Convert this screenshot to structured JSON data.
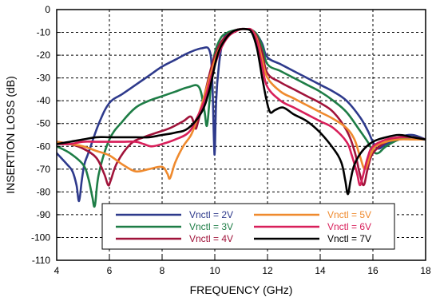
{
  "chart_data": {
    "type": "line",
    "title": "",
    "xlabel": "FREQUENCY (GHz)",
    "ylabel": "INSERTION LOSS (dB)",
    "xlim": [
      4,
      18
    ],
    "ylim": [
      -110,
      0
    ],
    "xticks": [
      4,
      6,
      8,
      10,
      12,
      14,
      16,
      18
    ],
    "yticks": [
      0,
      -10,
      -20,
      -30,
      -40,
      -50,
      -60,
      -70,
      -80,
      -90,
      -100,
      -110
    ],
    "xtick_labels": [
      "4",
      "6",
      "8",
      "10",
      "12",
      "14",
      "16",
      "18"
    ],
    "ytick_labels": [
      "0",
      "-10",
      "-20",
      "-30",
      "-40",
      "-50",
      "-60",
      "-70",
      "-80",
      "-90",
      "-100",
      "-110"
    ],
    "grid": "dashed",
    "legend_placement": "bottom-center",
    "series": [
      {
        "name": "Vnctl = 2V",
        "color": "#2e3a8c",
        "x": [
          4,
          4.4,
          4.6,
          4.75,
          4.85,
          4.95,
          5.05,
          5.2,
          5.6,
          6,
          6.5,
          7,
          7.5,
          8,
          8.5,
          9,
          9.5,
          9.8,
          9.9,
          9.97,
          10,
          10.05,
          10.15,
          10.3,
          10.5,
          10.8,
          11,
          11.2,
          11.4,
          11.6,
          11.8,
          12,
          12.5,
          13,
          13.5,
          14,
          14.5,
          15,
          15.5,
          15.8,
          16,
          16.2,
          16.5,
          17,
          17.5,
          18
        ],
        "y": [
          -63,
          -68,
          -71,
          -77,
          -84,
          -75,
          -68,
          -63,
          -50,
          -41,
          -37,
          -33,
          -29,
          -25,
          -22,
          -19,
          -17,
          -18,
          -30,
          -58,
          -62,
          -40,
          -25,
          -14,
          -10.5,
          -9,
          -8.5,
          -8.6,
          -9,
          -11,
          -15,
          -21,
          -24,
          -27,
          -30,
          -33,
          -36,
          -40,
          -47,
          -53,
          -58,
          -61,
          -59,
          -56,
          -55,
          -57
        ]
      },
      {
        "name": "Vnctl = 3V",
        "color": "#1e7d46",
        "x": [
          4,
          4.5,
          5,
          5.2,
          5.35,
          5.45,
          5.6,
          6,
          6.5,
          7,
          7.5,
          8,
          8.5,
          9,
          9.4,
          9.6,
          9.7,
          9.8,
          9.95,
          10.2,
          10.5,
          10.8,
          11,
          11.2,
          11.4,
          11.6,
          11.8,
          12,
          12.5,
          13,
          13.5,
          14,
          14.5,
          15,
          15.5,
          15.8,
          16,
          16.2,
          16.5,
          17,
          17.5,
          18
        ],
        "y": [
          -60,
          -63,
          -68,
          -74,
          -82,
          -86,
          -72,
          -57,
          -49,
          -43,
          -40,
          -38,
          -36,
          -34,
          -34,
          -44,
          -51,
          -40,
          -22,
          -13,
          -10,
          -9,
          -8.6,
          -8.6,
          -9,
          -11,
          -16,
          -24,
          -27,
          -30,
          -33,
          -36,
          -40,
          -45,
          -53,
          -58,
          -62,
          -63,
          -60,
          -57,
          -56,
          -57
        ]
      },
      {
        "name": "Vnctl = 4V",
        "color": "#a0133a",
        "x": [
          4,
          4.5,
          5,
          5.5,
          5.8,
          5.95,
          6.05,
          6.3,
          6.8,
          7.3,
          7.8,
          8.3,
          8.8,
          9.1,
          9.25,
          9.35,
          9.6,
          9.9,
          10.2,
          10.5,
          10.8,
          11,
          11.2,
          11.4,
          11.6,
          11.8,
          12,
          12.5,
          13,
          13.5,
          14,
          14.5,
          15,
          15.3,
          15.5,
          15.65,
          15.8,
          16,
          16.5,
          17,
          17.5,
          18
        ],
        "y": [
          -58,
          -59,
          -61,
          -65,
          -72,
          -77,
          -75,
          -67,
          -59,
          -56,
          -54,
          -52,
          -49,
          -47,
          -52,
          -50,
          -38,
          -24,
          -15,
          -11,
          -9,
          -8.5,
          -8.6,
          -9,
          -12,
          -19,
          -28,
          -32,
          -35,
          -38,
          -41,
          -45,
          -53,
          -62,
          -72,
          -77,
          -70,
          -63,
          -58,
          -56,
          -56,
          -57
        ]
      },
      {
        "name": "Vnctl = 5V",
        "color": "#ef8a2e",
        "x": [
          4,
          4.5,
          5,
          5.5,
          6,
          6.5,
          7,
          7.5,
          8,
          8.2,
          8.3,
          8.5,
          8.8,
          9.1,
          9.3,
          9.5,
          9.8,
          10.1,
          10.4,
          10.7,
          11,
          11.2,
          11.4,
          11.6,
          11.8,
          12,
          12.5,
          13,
          13.5,
          14,
          14.5,
          15,
          15.3,
          15.5,
          15.7,
          15.9,
          16.1,
          16.5,
          17,
          17.5,
          18
        ],
        "y": [
          -58,
          -59,
          -60,
          -62,
          -64,
          -68,
          -71,
          -70,
          -69,
          -72,
          -74,
          -67,
          -60,
          -55,
          -49,
          -42,
          -30,
          -19,
          -13,
          -10,
          -8.6,
          -8.6,
          -9,
          -13,
          -22,
          -30,
          -36,
          -39,
          -42,
          -45,
          -48,
          -52,
          -57,
          -64,
          -70,
          -64,
          -60,
          -58,
          -57,
          -57,
          -57
        ]
      },
      {
        "name": "Vnctl = 6V",
        "color": "#d81f5a",
        "x": [
          4,
          4.5,
          5,
          5.5,
          6,
          6.5,
          7,
          7.3,
          7.6,
          8,
          8.5,
          9,
          9.3,
          9.6,
          9.9,
          10.2,
          10.5,
          10.8,
          11,
          11.2,
          11.4,
          11.6,
          11.8,
          12,
          12.5,
          13,
          13.5,
          14,
          14.5,
          15,
          15.2,
          15.4,
          15.5,
          15.6,
          15.8,
          16,
          16.5,
          17,
          17.5,
          18
        ],
        "y": [
          -59,
          -59,
          -58,
          -58,
          -58,
          -58,
          -58,
          -59,
          -60,
          -59,
          -57,
          -54,
          -48,
          -40,
          -28,
          -18,
          -12,
          -9.5,
          -8.6,
          -8.6,
          -9,
          -14,
          -25,
          -34,
          -40,
          -43,
          -46,
          -49,
          -52,
          -58,
          -64,
          -72,
          -77,
          -74,
          -65,
          -60,
          -57,
          -56,
          -56,
          -57
        ]
      },
      {
        "name": "Vnctl = 7V",
        "color": "#000000",
        "x": [
          4,
          4.5,
          5,
          5.5,
          6,
          6.5,
          7,
          7.5,
          8,
          8.5,
          9,
          9.5,
          9.8,
          10.1,
          10.4,
          10.7,
          11,
          11.2,
          11.4,
          11.6,
          11.8,
          11.95,
          12.1,
          12.3,
          12.6,
          13,
          13.5,
          14,
          14.5,
          14.8,
          14.95,
          15.05,
          15.15,
          15.3,
          15.6,
          16,
          16.5,
          17,
          17.5,
          18
        ],
        "y": [
          -59,
          -58,
          -57,
          -56,
          -56,
          -56,
          -56,
          -56,
          -55,
          -54,
          -52,
          -45,
          -35,
          -20,
          -13,
          -9.5,
          -8.6,
          -8.6,
          -10,
          -17,
          -30,
          -39,
          -45,
          -44,
          -43,
          -46,
          -49,
          -54,
          -61,
          -67,
          -75,
          -81,
          -75,
          -68,
          -62,
          -58,
          -56,
          -55,
          -56,
          -57
        ]
      }
    ]
  }
}
